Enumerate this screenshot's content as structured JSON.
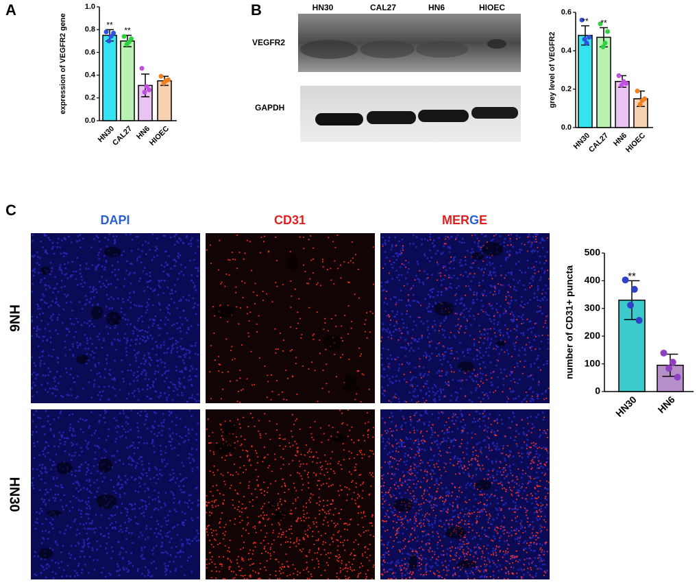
{
  "panels": [
    "A",
    "B",
    "C"
  ],
  "blot": {
    "lanes": [
      "HN30",
      "CAL27",
      "HN6",
      "HIOEC"
    ],
    "rows": [
      "VEGFR2",
      "GAPDH"
    ]
  },
  "micro": {
    "columns": [
      "DAPI",
      "CD31",
      "MERGE"
    ],
    "rows": [
      "HN6",
      "HN30"
    ]
  },
  "chart_data": [
    {
      "type": "bar",
      "ylabel": "expression of VEGFR2 gene",
      "categories": [
        "HN30",
        "CAL27",
        "HN6",
        "HIOEC"
      ],
      "values": [
        0.75,
        0.7,
        0.31,
        0.35
      ],
      "errors": [
        0.05,
        0.05,
        0.1,
        0.04
      ],
      "points": [
        [
          0.78,
          0.74,
          0.7,
          0.77
        ],
        [
          0.74,
          0.69,
          0.67,
          0.72
        ],
        [
          0.46,
          0.3,
          0.25,
          0.27
        ],
        [
          0.39,
          0.35,
          0.33,
          0.36
        ]
      ],
      "significance": [
        "**",
        "**",
        null,
        null
      ],
      "colors": [
        "#33e3f0",
        "#b9f2b3",
        "#e9c3f2",
        "#f7d2b3"
      ],
      "point_colors": [
        "#3050e0",
        "#30d040",
        "#c050e0",
        "#f08020"
      ],
      "ylim": [
        0,
        1.0
      ],
      "yticks": [
        {
          "value": 0,
          "label": "0.0"
        },
        0.2,
        0.4,
        0.6,
        0.8,
        {
          "value": 1.0,
          "label": "1.0"
        }
      ]
    },
    {
      "type": "bar",
      "ylabel": "grey level of VEGFR2",
      "categories": [
        "HN30",
        "CAL27",
        "HN6",
        "HIOEC"
      ],
      "values": [
        0.48,
        0.47,
        0.24,
        0.15
      ],
      "errors": [
        0.05,
        0.05,
        0.03,
        0.04
      ],
      "points": [
        [
          0.56,
          0.44,
          0.46,
          0.47
        ],
        [
          0.54,
          0.44,
          0.42,
          0.5
        ],
        [
          0.27,
          0.24,
          0.22,
          0.23
        ],
        [
          0.19,
          0.14,
          0.12,
          0.15
        ]
      ],
      "significance": [
        "**",
        "**",
        null,
        null
      ],
      "colors": [
        "#33e3f0",
        "#b9f2b3",
        "#e9c3f2",
        "#f7d2b3"
      ],
      "point_colors": [
        "#3050e0",
        "#30d040",
        "#c050e0",
        "#f08020"
      ],
      "ylim": [
        0,
        0.6
      ],
      "yticks": [
        {
          "value": 0,
          "label": "0.0"
        },
        0.2,
        0.4,
        0.6
      ]
    },
    {
      "type": "bar",
      "ylabel": "number of CD31+ puncta",
      "categories": [
        "HN30",
        "HN6"
      ],
      "values": [
        330,
        95
      ],
      "errors": [
        70,
        40
      ],
      "points": [
        [
          403,
          369,
          312,
          257
        ],
        [
          139,
          106,
          84,
          52
        ]
      ],
      "significance": [
        "**",
        null
      ],
      "colors": [
        "#3ccaca",
        "#b78fc8"
      ],
      "point_colors": [
        "#3040c8",
        "#9040c0"
      ],
      "ylim": [
        0,
        500
      ],
      "yticks": [
        0,
        100,
        200,
        300,
        400,
        500
      ]
    }
  ]
}
